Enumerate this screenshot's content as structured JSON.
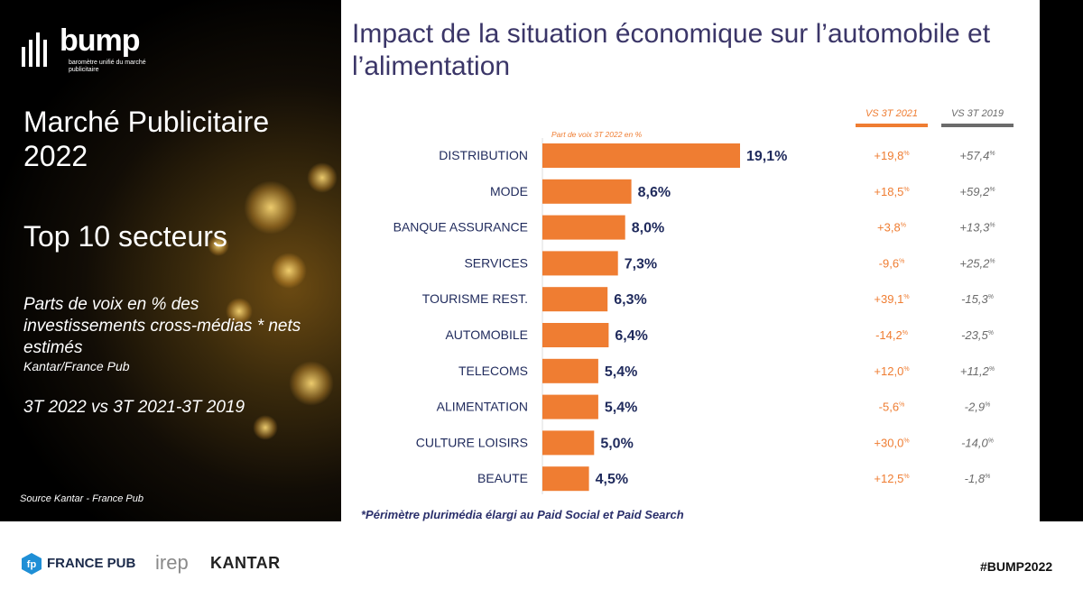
{
  "left_panel": {
    "logo": {
      "word": "bump",
      "tagline": "baromètre unifié du marché publicitaire"
    },
    "title": "Marché Publicitaire 2022",
    "subtitle": "Top 10 secteurs",
    "description": "Parts de voix en  % des investissements cross-médias * nets estimés",
    "description_source": "Kantar/France Pub",
    "period": "3T 2022 vs 3T 2021-3T 2019",
    "source": "Source Kantar - France Pub"
  },
  "chart_data": {
    "type": "bar",
    "title": "Impact de la situation économique sur l’automobile et l’alimentation",
    "axis_caption": "Part de voix 3T 2022  en %",
    "categories": [
      "DISTRIBUTION",
      "MODE",
      "BANQUE ASSURANCE",
      "SERVICES",
      "TOURISME REST.",
      "AUTOMOBILE",
      "TELECOMS",
      "ALIMENTATION",
      "CULTURE LOISIRS",
      "BEAUTE"
    ],
    "values": [
      19.1,
      8.6,
      8.0,
      7.3,
      6.3,
      6.4,
      5.4,
      5.4,
      5.0,
      4.5
    ],
    "value_labels": [
      "19,1%",
      "8,6%",
      "8,0%",
      "7,3%",
      "6,3%",
      "6,4%",
      "5,4%",
      "5,4%",
      "5,0%",
      "4,5%"
    ],
    "bar_color": "#ef7d32",
    "comparison_columns": [
      {
        "header": "VS 3T 2021",
        "color": "#ef7d32",
        "values": [
          "+19,8",
          "+18,5",
          "+3,8",
          "-9,6",
          "+39,1",
          "-14,2",
          "+12,0",
          "-5,6",
          "+30,0",
          "+12,5"
        ]
      },
      {
        "header": "VS 3T 2019",
        "color": "#6b6b6b",
        "values": [
          "+57,4",
          "+59,2",
          "+13,3",
          "+25,2",
          "-15,3",
          "-23,5",
          "+11,2",
          "-2,9",
          "-14,0",
          "-1,8"
        ]
      }
    ],
    "comparison_unit": "%",
    "footnote": "*Périmètre plurimédia élargi au Paid Social et Paid Search"
  },
  "footer": {
    "logos": {
      "france_pub_mark": "fp",
      "france_pub": "FRANCE PUB",
      "irep": "irep",
      "kantar": "KANTAR"
    },
    "hashtag": "#BUMP2022"
  }
}
